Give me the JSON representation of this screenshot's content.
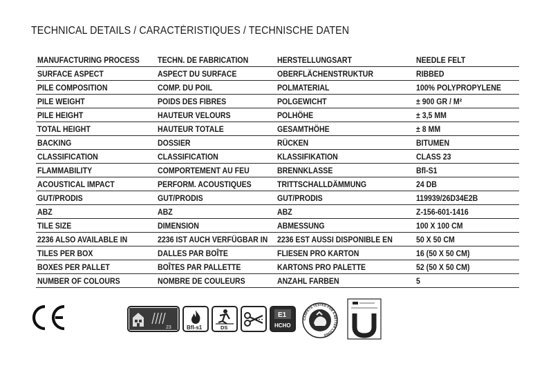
{
  "title": "TECHNICAL DETAILS / CARACTÉRISTIQUES / TECHNISCHE DATEN",
  "rows": [
    [
      "MANUFACTURING PROCESS",
      "TECHN. DE FABRICATION",
      "HERSTELLUNGSART",
      "NEEDLE FELT"
    ],
    [
      "SURFACE ASPECT",
      "ASPECT DU SURFACE",
      "OBERFLÄCHENSTRUKTUR",
      "RIBBED"
    ],
    [
      "PILE COMPOSITION",
      "COMP. DU POIL",
      "POLMATERIAL",
      "100% POLYPROPYLENE"
    ],
    [
      "PILE WEIGHT",
      "POIDS DES FIBRES",
      "POLGEWICHT",
      "± 900 GR / M²"
    ],
    [
      "PILE HEIGHT",
      "HAUTEUR VELOURS",
      "POLHÖHE",
      "± 3,5 MM"
    ],
    [
      "TOTAL HEIGHT",
      "HAUTEUR TOTALE",
      "GESAMTHÖHE",
      "± 8 MM"
    ],
    [
      "BACKING",
      "DOSSIER",
      "RÜCKEN",
      "BITUMEN"
    ],
    [
      "CLASSIFICATION",
      "CLASSIFICATION",
      "KLASSIFIKATION",
      "CLASS 23"
    ],
    [
      "FLAMMABILITY",
      "COMPORTEMENT AU FEU",
      "BRENNKLASSE",
      "Bfl-S1"
    ],
    [
      "ACOUSTICAL IMPACT",
      "PERFORM. ACOUSTIQUES",
      "TRITTSCHALLDÄMMUNG",
      "24 DB"
    ],
    [
      "GUT/PRODIS",
      "GUT/PRODIS",
      "GUT/PRODIS",
      "119939/26D34E2B"
    ],
    [
      "ABZ",
      "ABZ",
      "ABZ",
      "Z-156-601-1416"
    ],
    [
      "TILE SIZE",
      "DIMENSION",
      "ABMESSUNG",
      "100 X 100 CM"
    ],
    [
      "2236 ALSO AVAILABLE IN",
      "2236 IST AUCH VERFÜGBAR IN",
      "2236 EST AUSSI DISPONIBLE EN",
      "50 X 50 CM"
    ],
    [
      "TILES PER BOX",
      "DALLES PAR BOÎTE",
      "FLIESEN PRO KARTON",
      "16 (50 X 50 CM)"
    ],
    [
      "BOXES PER PALLET",
      "BOÎTES PAR PALLETTE",
      "KARTONS PRO PALETTE",
      "52 (50 X 50 CM)"
    ],
    [
      "NUMBER OF COLOURS",
      "NOMBRE DE COULEURS",
      "ANZAHL FARBEN",
      "5"
    ]
  ],
  "badges": {
    "ce": "CE",
    "class_number": "23",
    "fire_class": "Bfl-s1",
    "ds": "DS",
    "e1": "E1",
    "hcho": "HCHO",
    "gut_ring": "CARPETS TESTED FOR A BETTER LIVING"
  },
  "icon_names": [
    "ce-mark-icon",
    "class-23-usage-icon",
    "fire-class-bfl-s1-icon",
    "antistatic-ds-icon",
    "cutting-scissors-icon",
    "e1-hcho-emission-icon",
    "gut-certification-seal-icon",
    "u-certification-label-icon"
  ],
  "colors": {
    "text": "#1a1a1a",
    "rule": "#2a2a2a",
    "background": "#ffffff"
  }
}
